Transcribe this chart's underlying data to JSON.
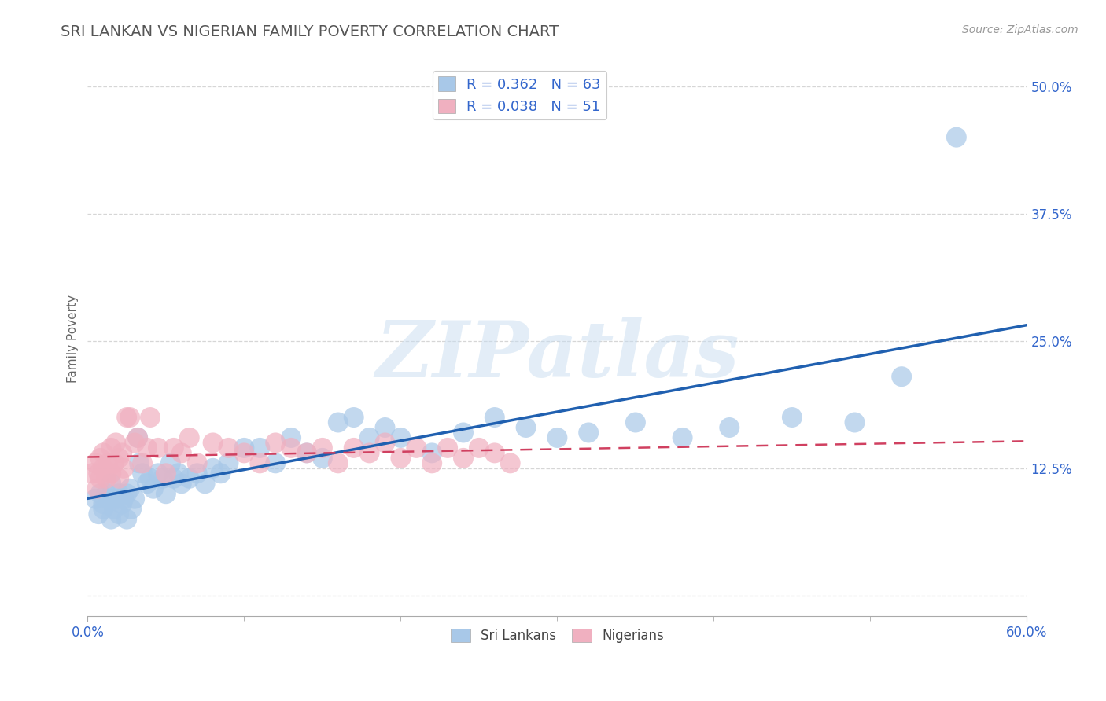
{
  "title": "SRI LANKAN VS NIGERIAN FAMILY POVERTY CORRELATION CHART",
  "source_text": "Source: ZipAtlas.com",
  "ylabel": "Family Poverty",
  "x_min": 0.0,
  "x_max": 0.6,
  "y_min": -0.02,
  "y_max": 0.525,
  "y_ticks": [
    0.0,
    0.125,
    0.25,
    0.375,
    0.5
  ],
  "y_tick_labels": [
    "",
    "12.5%",
    "25.0%",
    "37.5%",
    "50.0%"
  ],
  "x_tick_labels": [
    "0.0%",
    "60.0%"
  ],
  "sri_lankan_R": "0.362",
  "sri_lankan_N": "63",
  "nigerian_R": "0.038",
  "nigerian_N": "51",
  "blue_dot_color": "#a8c8e8",
  "blue_line_color": "#2060b0",
  "pink_dot_color": "#f0b0c0",
  "pink_line_color": "#d04060",
  "pink_line_dash": [
    6,
    4
  ],
  "legend_label_1": "Sri Lankans",
  "legend_label_2": "Nigerians",
  "watermark": "ZIPatlas",
  "background_color": "#ffffff",
  "grid_color": "#cccccc",
  "title_color": "#555555",
  "tick_color": "#3366cc",
  "sri_lankan_x": [
    0.005,
    0.007,
    0.008,
    0.01,
    0.01,
    0.012,
    0.013,
    0.015,
    0.015,
    0.017,
    0.018,
    0.02,
    0.02,
    0.022,
    0.023,
    0.025,
    0.025,
    0.027,
    0.028,
    0.03,
    0.032,
    0.033,
    0.035,
    0.038,
    0.04,
    0.042,
    0.045,
    0.048,
    0.05,
    0.053,
    0.055,
    0.058,
    0.06,
    0.065,
    0.07,
    0.075,
    0.08,
    0.085,
    0.09,
    0.1,
    0.11,
    0.12,
    0.13,
    0.14,
    0.15,
    0.16,
    0.17,
    0.18,
    0.19,
    0.2,
    0.22,
    0.24,
    0.26,
    0.28,
    0.3,
    0.32,
    0.35,
    0.38,
    0.41,
    0.45,
    0.49,
    0.52,
    0.555
  ],
  "sri_lankan_y": [
    0.095,
    0.08,
    0.1,
    0.09,
    0.085,
    0.1,
    0.095,
    0.075,
    0.11,
    0.085,
    0.095,
    0.1,
    0.08,
    0.09,
    0.095,
    0.075,
    0.1,
    0.105,
    0.085,
    0.095,
    0.155,
    0.13,
    0.12,
    0.11,
    0.115,
    0.105,
    0.12,
    0.115,
    0.1,
    0.13,
    0.115,
    0.12,
    0.11,
    0.115,
    0.12,
    0.11,
    0.125,
    0.12,
    0.13,
    0.145,
    0.145,
    0.13,
    0.155,
    0.14,
    0.135,
    0.17,
    0.175,
    0.155,
    0.165,
    0.155,
    0.14,
    0.16,
    0.175,
    0.165,
    0.155,
    0.16,
    0.17,
    0.155,
    0.165,
    0.175,
    0.17,
    0.215,
    0.45
  ],
  "nigerian_x": [
    0.003,
    0.005,
    0.006,
    0.007,
    0.008,
    0.008,
    0.01,
    0.01,
    0.012,
    0.013,
    0.015,
    0.015,
    0.017,
    0.018,
    0.02,
    0.02,
    0.022,
    0.023,
    0.025,
    0.027,
    0.03,
    0.032,
    0.035,
    0.038,
    0.04,
    0.045,
    0.05,
    0.055,
    0.06,
    0.065,
    0.07,
    0.08,
    0.09,
    0.1,
    0.11,
    0.12,
    0.13,
    0.14,
    0.15,
    0.16,
    0.17,
    0.18,
    0.19,
    0.2,
    0.21,
    0.22,
    0.23,
    0.24,
    0.25,
    0.26,
    0.27
  ],
  "nigerian_y": [
    0.12,
    0.13,
    0.105,
    0.12,
    0.135,
    0.115,
    0.125,
    0.14,
    0.115,
    0.13,
    0.145,
    0.12,
    0.13,
    0.15,
    0.115,
    0.135,
    0.14,
    0.125,
    0.175,
    0.175,
    0.15,
    0.155,
    0.13,
    0.145,
    0.175,
    0.145,
    0.12,
    0.145,
    0.14,
    0.155,
    0.13,
    0.15,
    0.145,
    0.14,
    0.13,
    0.15,
    0.145,
    0.14,
    0.145,
    0.13,
    0.145,
    0.14,
    0.15,
    0.135,
    0.145,
    0.13,
    0.145,
    0.135,
    0.145,
    0.14,
    0.13
  ]
}
